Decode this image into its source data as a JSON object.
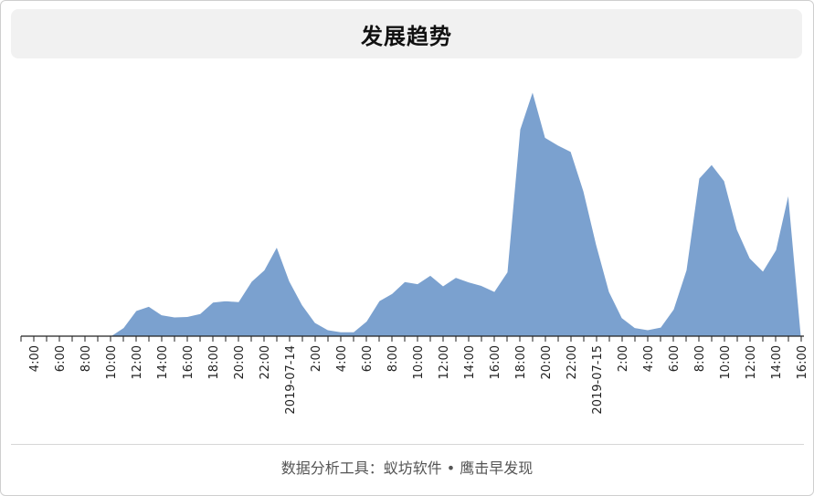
{
  "title": "发展趋势",
  "footer": "数据分析工具：蚁坊软件 • 鹰击早发现",
  "colors": {
    "area_fill": "#7ba1cf",
    "area_stroke": "#ffffff",
    "axis": "#222222"
  },
  "chart_data": {
    "type": "area",
    "grid": false,
    "legend": "none",
    "x_tick_labels": [
      "4:00",
      "6:00",
      "8:00",
      "10:00",
      "12:00",
      "14:00",
      "16:00",
      "18:00",
      "20:00",
      "22:00",
      "2019-07-14",
      "2:00",
      "4:00",
      "6:00",
      "8:00",
      "10:00",
      "12:00",
      "14:00",
      "16:00",
      "18:00",
      "20:00",
      "22:00",
      "2019-07-15",
      "2:00",
      "4:00",
      "6:00",
      "8:00",
      "10:00",
      "12:00",
      "14:00",
      "16:00"
    ],
    "x": [
      "2019-07-13 03:00",
      "2019-07-13 04:00",
      "2019-07-13 05:00",
      "2019-07-13 06:00",
      "2019-07-13 07:00",
      "2019-07-13 08:00",
      "2019-07-13 09:00",
      "2019-07-13 10:00",
      "2019-07-13 11:00",
      "2019-07-13 12:00",
      "2019-07-13 13:00",
      "2019-07-13 14:00",
      "2019-07-13 15:00",
      "2019-07-13 16:00",
      "2019-07-13 17:00",
      "2019-07-13 18:00",
      "2019-07-13 19:00",
      "2019-07-13 20:00",
      "2019-07-13 21:00",
      "2019-07-13 22:00",
      "2019-07-13 23:00",
      "2019-07-14 00:00",
      "2019-07-14 01:00",
      "2019-07-14 02:00",
      "2019-07-14 03:00",
      "2019-07-14 04:00",
      "2019-07-14 05:00",
      "2019-07-14 06:00",
      "2019-07-14 07:00",
      "2019-07-14 08:00",
      "2019-07-14 09:00",
      "2019-07-14 10:00",
      "2019-07-14 11:00",
      "2019-07-14 12:00",
      "2019-07-14 13:00",
      "2019-07-14 14:00",
      "2019-07-14 15:00",
      "2019-07-14 16:00",
      "2019-07-14 17:00",
      "2019-07-14 18:00",
      "2019-07-14 19:00",
      "2019-07-14 20:00",
      "2019-07-14 21:00",
      "2019-07-14 22:00",
      "2019-07-14 23:00",
      "2019-07-15 00:00",
      "2019-07-15 01:00",
      "2019-07-15 02:00",
      "2019-07-15 03:00",
      "2019-07-15 04:00",
      "2019-07-15 05:00",
      "2019-07-15 06:00",
      "2019-07-15 07:00",
      "2019-07-15 08:00",
      "2019-07-15 09:00",
      "2019-07-15 10:00",
      "2019-07-15 11:00",
      "2019-07-15 12:00",
      "2019-07-15 13:00",
      "2019-07-15 14:00",
      "2019-07-15 15:00",
      "2019-07-15 16:00"
    ],
    "values": [
      0,
      0,
      0,
      0,
      0,
      0,
      0,
      0,
      2,
      6,
      7,
      5,
      4.5,
      4.6,
      5.3,
      8,
      8.3,
      8.1,
      12.8,
      15.5,
      21,
      12.9,
      7.3,
      3.2,
      1.5,
      1,
      1,
      3.5,
      8.3,
      10,
      12.8,
      12.3,
      14.3,
      11.8,
      13.8,
      12.7,
      11.9,
      10.5,
      15,
      48.5,
      57.5,
      46.6,
      44.8,
      43.3,
      34,
      21.4,
      10.4,
      4.3,
      2,
      1.5,
      2.1,
      6.3,
      15.5,
      37,
      40.3,
      36.4,
      25,
      18.3,
      15.3,
      20.2,
      33.5,
      0
    ],
    "ylim": [
      0,
      60
    ]
  }
}
